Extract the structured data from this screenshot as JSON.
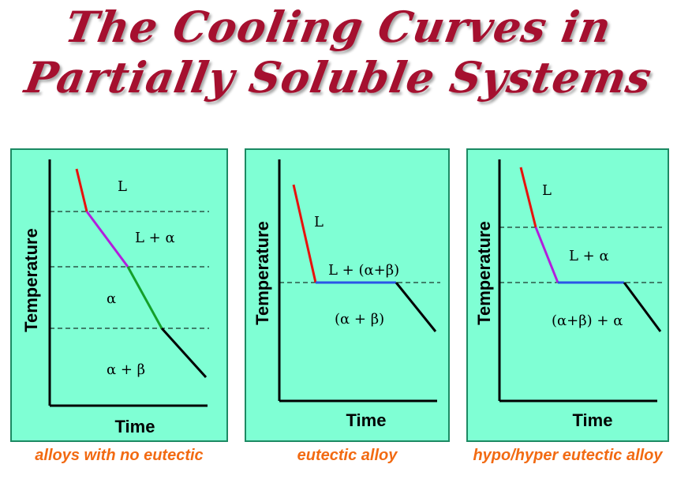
{
  "title": {
    "line1": "The Cooling Curves in",
    "line2": "Partially Soluble Systems"
  },
  "colors": {
    "title": "#a5102f",
    "panel_bg": "#7fffd4",
    "panel_border": "#1c8a63",
    "caption": "#f26a12",
    "liquid": "#e8120c",
    "l_plus_alpha": "#b21edc",
    "alpha": "#14a02a",
    "eutectic": "#2a55e6",
    "solid": "#000000"
  },
  "panels": [
    {
      "xlabel": "Time",
      "ylabel": "Temperature",
      "caption": "alloys with no eutectic",
      "regions": [
        "L",
        "L + α",
        "α",
        "α + β"
      ]
    },
    {
      "xlabel": "Time",
      "ylabel": "Temperature",
      "caption": "eutectic alloy",
      "regions": [
        "L",
        "L + (α+β)",
        "(α + β)"
      ]
    },
    {
      "xlabel": "Time",
      "ylabel": "Temperature",
      "caption": "hypo/hyper eutectic alloy",
      "regions": [
        "L",
        "L + α",
        "(α+β) + α"
      ]
    }
  ]
}
